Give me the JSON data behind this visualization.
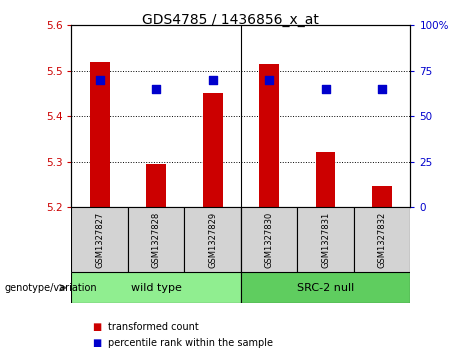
{
  "title": "GDS4785 / 1436856_x_at",
  "samples": [
    "GSM1327827",
    "GSM1327828",
    "GSM1327829",
    "GSM1327830",
    "GSM1327831",
    "GSM1327832"
  ],
  "red_values": [
    5.52,
    5.295,
    5.45,
    5.515,
    5.32,
    5.245
  ],
  "blue_percentiles": [
    70,
    65,
    70,
    70,
    65,
    65
  ],
  "ylim_left": [
    5.2,
    5.6
  ],
  "ylim_right": [
    0,
    100
  ],
  "yticks_left": [
    5.2,
    5.3,
    5.4,
    5.5,
    5.6
  ],
  "yticks_right": [
    0,
    25,
    50,
    75,
    100
  ],
  "groups": [
    {
      "label": "wild type",
      "color": "#90ee90"
    },
    {
      "label": "SRC-2 null",
      "color": "#5fcd5f"
    }
  ],
  "bar_color": "#cc0000",
  "dot_color": "#0000cc",
  "bar_width": 0.35,
  "dot_size": 30,
  "left_label_color": "#cc0000",
  "right_label_color": "#0000cc",
  "sample_bg": "#d3d3d3",
  "genotype_label": "genotype/variation",
  "legend_items": [
    {
      "label": "transformed count",
      "color": "#cc0000"
    },
    {
      "label": "percentile rank within the sample",
      "color": "#0000cc"
    }
  ]
}
